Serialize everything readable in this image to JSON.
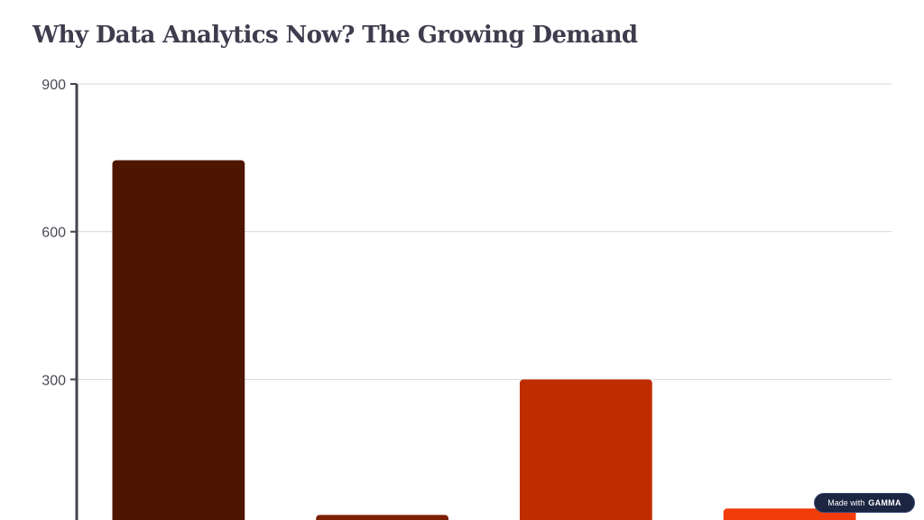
{
  "slide": {
    "title": "Why Data Analytics Now? The Growing Demand"
  },
  "chart_data": {
    "type": "bar",
    "categories": [
      "",
      "",
      "",
      ""
    ],
    "values": [
      745,
      25,
      300,
      38
    ],
    "ylim": [
      0,
      900
    ],
    "yticks": [
      300,
      600,
      900
    ],
    "grid": true,
    "colors": [
      "#4e1500",
      "#7a1f00",
      "#bf2c00",
      "#f23c0a"
    ]
  },
  "badge": {
    "label": "Made with",
    "brand": "GAMMA"
  }
}
